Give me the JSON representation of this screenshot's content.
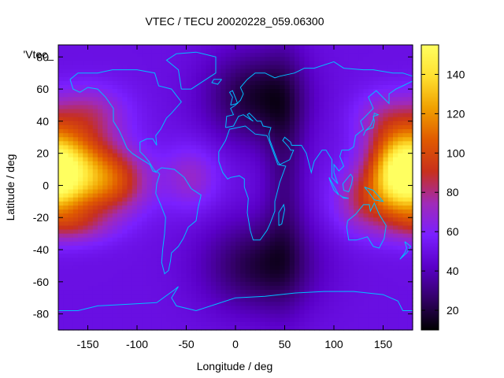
{
  "chart_data": {
    "type": "heatmap",
    "title": "VTEC / TECU 20020228_059.06300",
    "xlabel": "Longitude / deg",
    "ylabel": "Latitude / deg",
    "legend_label": "'Vtec_",
    "xlim": [
      -180,
      180
    ],
    "ylim": [
      -90,
      87.5
    ],
    "x_ticks": [
      -150,
      -100,
      -50,
      0,
      50,
      100,
      150
    ],
    "y_ticks": [
      -80,
      -60,
      -40,
      -20,
      0,
      20,
      40,
      60,
      80
    ],
    "colorbar": {
      "range": [
        10,
        155
      ],
      "ticks": [
        20,
        40,
        60,
        80,
        100,
        120,
        140
      ],
      "palette": [
        "#000000",
        "#330068",
        "#5a00c8",
        "#7a20ff",
        "#a02ab8",
        "#c8301c",
        "#e05a00",
        "#f0a000",
        "#ffe030",
        "#ffff60"
      ]
    },
    "grid": {
      "lon_step": 5,
      "lat_step": 2.5
    },
    "tec_model": {
      "background": 50,
      "blobs": [
        {
          "lon": -165,
          "lat": 8,
          "slon": 30,
          "slat": 18,
          "amp": 70
        },
        {
          "lon": -120,
          "lat": 2,
          "slon": 25,
          "slat": 14,
          "amp": 35
        },
        {
          "lon": -45,
          "lat": 5,
          "slon": 20,
          "slat": 14,
          "amp": 20
        },
        {
          "lon": 168,
          "lat": 8,
          "slon": 22,
          "slat": 18,
          "amp": 78
        },
        {
          "lon": 130,
          "lat": -10,
          "slon": 22,
          "slat": 14,
          "amp": 28
        },
        {
          "lon": -150,
          "lat": 45,
          "slon": 28,
          "slat": 12,
          "amp": 25
        },
        {
          "lon": 150,
          "lat": 42,
          "slon": 22,
          "slat": 12,
          "amp": 18
        },
        {
          "lon": -165,
          "lat": -25,
          "slon": 28,
          "slat": 8,
          "amp": 22
        },
        {
          "lon": 20,
          "lat": 55,
          "slon": 35,
          "slat": 20,
          "amp": -32
        },
        {
          "lon": 25,
          "lat": -50,
          "slon": 40,
          "slat": 20,
          "amp": -30
        },
        {
          "lon": 50,
          "lat": 10,
          "slon": 15,
          "slat": 50,
          "amp": -18
        }
      ]
    },
    "coastline_color": "#00bfff"
  }
}
